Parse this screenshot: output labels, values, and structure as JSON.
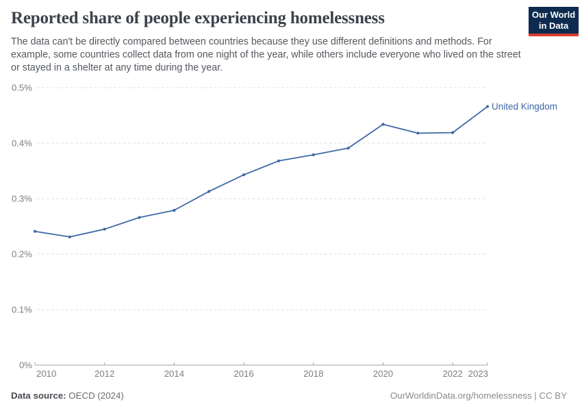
{
  "header": {
    "title": "Reported share of people experiencing homelessness",
    "subtitle": "The data can't be directly compared between countries because they use different definitions and methods. For example, some countries collect data from one night of the year, while others include everyone who lived on the street or stayed in a shelter at any time during the year.",
    "logo": {
      "line1": "Our World",
      "line2": "in Data",
      "bg_color": "#0d2b4e",
      "accent_color": "#dc3c2e"
    }
  },
  "chart_data": {
    "type": "line",
    "title": "Reported share of people experiencing homelessness",
    "x": [
      2010,
      2011,
      2012,
      2013,
      2014,
      2015,
      2016,
      2017,
      2018,
      2019,
      2020,
      2021,
      2022,
      2023
    ],
    "series": [
      {
        "name": "United Kingdom",
        "color": "#3d68a6",
        "values": [
          0.241,
          0.231,
          0.245,
          0.266,
          0.279,
          0.313,
          0.343,
          0.368,
          0.379,
          0.391,
          0.434,
          0.418,
          0.419,
          0.466
        ]
      }
    ],
    "xlabel": "",
    "ylabel": "",
    "ylim": [
      0,
      0.5
    ],
    "yticks": [
      0,
      0.1,
      0.2,
      0.3,
      0.4,
      0.5
    ],
    "ytick_labels": [
      "0%",
      "0.1%",
      "0.2%",
      "0.3%",
      "0.4%",
      "0.5%"
    ],
    "xticks": [
      2010,
      2012,
      2014,
      2016,
      2018,
      2020,
      2022,
      2023
    ],
    "grid": "horizontal-dashed",
    "legend_position": "end-of-line-label",
    "colors": {
      "grid": "#dcdcdc",
      "axis": "#a3a3a3",
      "tick_label": "#7d7d7d"
    }
  },
  "footer": {
    "source_label": "Data source:",
    "source_value": "OECD (2024)",
    "attribution": "OurWorldinData.org/homelessness | CC BY"
  }
}
